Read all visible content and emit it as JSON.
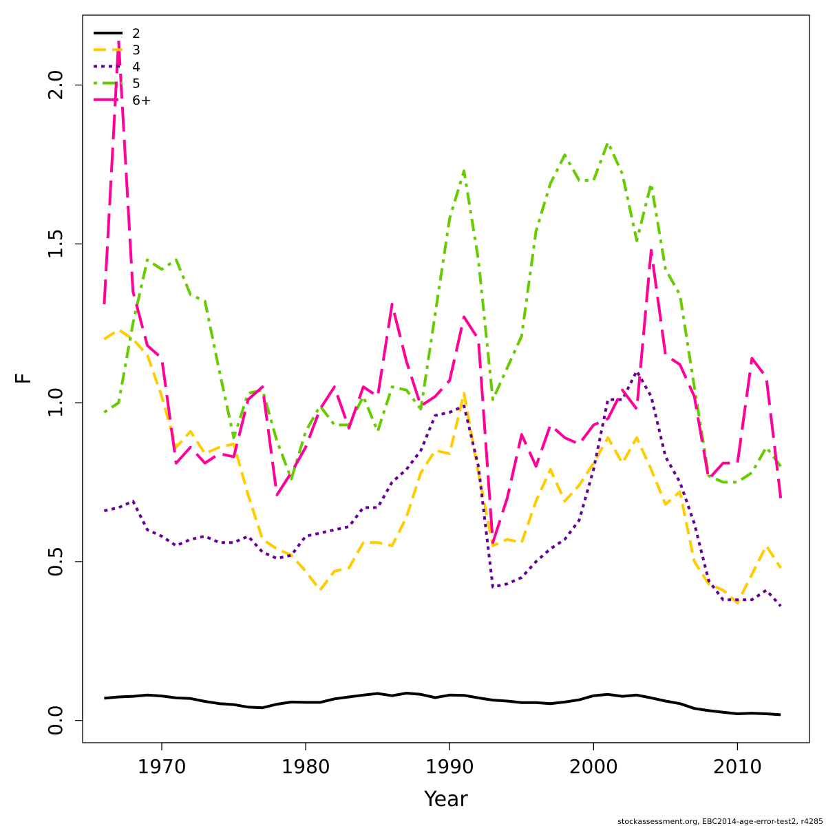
{
  "chart_data": {
    "type": "line",
    "title": "",
    "xlabel": "Year",
    "ylabel": "F",
    "xlim": [
      1964.5,
      2015
    ],
    "ylim": [
      -0.07,
      2.22
    ],
    "xticks": [
      1970,
      1980,
      1990,
      2000,
      2010
    ],
    "xtick_labels": [
      "1970",
      "1980",
      "1990",
      "2000",
      "2010"
    ],
    "yticks": [
      0.0,
      0.5,
      1.0,
      1.5,
      2.0
    ],
    "ytick_labels": [
      "0.0",
      "0.5",
      "1.0",
      "1.5",
      "2.0"
    ],
    "grid": false,
    "legend_position": "top-left",
    "x": [
      1966,
      1967,
      1968,
      1969,
      1970,
      1971,
      1972,
      1973,
      1974,
      1975,
      1976,
      1977,
      1978,
      1979,
      1980,
      1981,
      1982,
      1983,
      1984,
      1985,
      1986,
      1987,
      1988,
      1989,
      1990,
      1991,
      1992,
      1993,
      1994,
      1995,
      1996,
      1997,
      1998,
      1999,
      2000,
      2001,
      2002,
      2003,
      2004,
      2005,
      2006,
      2007,
      2008,
      2009,
      2010,
      2011,
      2012,
      2013
    ],
    "series": [
      {
        "name": "2",
        "color": "#000000",
        "dash": "solid",
        "values": [
          0.07,
          0.074,
          0.076,
          0.08,
          0.077,
          0.071,
          0.069,
          0.06,
          0.053,
          0.05,
          0.042,
          0.04,
          0.051,
          0.058,
          0.057,
          0.057,
          0.068,
          0.074,
          0.08,
          0.085,
          0.078,
          0.086,
          0.082,
          0.072,
          0.08,
          0.079,
          0.071,
          0.064,
          0.061,
          0.056,
          0.056,
          0.053,
          0.058,
          0.065,
          0.078,
          0.082,
          0.076,
          0.08,
          0.071,
          0.061,
          0.053,
          0.038,
          0.031,
          0.026,
          0.021,
          0.023,
          0.021,
          0.018
        ]
      },
      {
        "name": "3",
        "color": "#ffcc00",
        "dash": "dashed",
        "values": [
          1.2,
          1.23,
          1.2,
          1.15,
          1.02,
          0.86,
          0.91,
          0.84,
          0.86,
          0.87,
          0.71,
          0.57,
          0.54,
          0.52,
          0.47,
          0.41,
          0.47,
          0.48,
          0.56,
          0.56,
          0.55,
          0.64,
          0.78,
          0.85,
          0.84,
          1.03,
          0.78,
          0.55,
          0.57,
          0.56,
          0.69,
          0.79,
          0.69,
          0.74,
          0.81,
          0.89,
          0.81,
          0.89,
          0.79,
          0.68,
          0.72,
          0.5,
          0.43,
          0.41,
          0.37,
          0.46,
          0.55,
          0.48
        ]
      },
      {
        "name": "4",
        "color": "#660099",
        "dash": "dotted",
        "values": [
          0.66,
          0.67,
          0.69,
          0.6,
          0.58,
          0.55,
          0.57,
          0.58,
          0.56,
          0.56,
          0.58,
          0.53,
          0.51,
          0.52,
          0.58,
          0.59,
          0.6,
          0.61,
          0.67,
          0.67,
          0.75,
          0.79,
          0.85,
          0.96,
          0.97,
          0.99,
          0.8,
          0.42,
          0.43,
          0.45,
          0.5,
          0.54,
          0.57,
          0.63,
          0.79,
          1.01,
          1.01,
          1.1,
          1.02,
          0.83,
          0.75,
          0.62,
          0.44,
          0.38,
          0.38,
          0.38,
          0.41,
          0.36
        ]
      },
      {
        "name": "5",
        "color": "#66cc00",
        "dash": "dotdash",
        "values": [
          0.97,
          1.0,
          1.25,
          1.45,
          1.42,
          1.45,
          1.34,
          1.32,
          1.1,
          0.89,
          1.03,
          1.04,
          0.88,
          0.76,
          0.91,
          0.99,
          0.93,
          0.93,
          1.02,
          0.91,
          1.05,
          1.04,
          0.98,
          1.28,
          1.58,
          1.73,
          1.45,
          1.01,
          1.11,
          1.21,
          1.54,
          1.69,
          1.78,
          1.7,
          1.7,
          1.82,
          1.72,
          1.51,
          1.69,
          1.42,
          1.34,
          1.05,
          0.77,
          0.75,
          0.75,
          0.78,
          0.86,
          0.8
        ]
      },
      {
        "name": "6+",
        "color": "#ff0099",
        "dash": "longdash",
        "values": [
          1.31,
          2.14,
          1.35,
          1.18,
          1.14,
          0.81,
          0.86,
          0.81,
          0.84,
          0.83,
          1.01,
          1.05,
          0.71,
          0.78,
          0.86,
          0.98,
          1.05,
          0.92,
          1.05,
          1.02,
          1.31,
          1.13,
          0.99,
          1.02,
          1.07,
          1.27,
          1.2,
          0.56,
          0.7,
          0.9,
          0.8,
          0.93,
          0.89,
          0.87,
          0.93,
          0.95,
          1.04,
          0.98,
          1.48,
          1.15,
          1.12,
          1.02,
          0.76,
          0.81,
          0.81,
          1.14,
          1.08,
          0.7
        ]
      }
    ]
  },
  "footer_note": "stockassessment.org, EBC2014-age-error-test2, r4285"
}
